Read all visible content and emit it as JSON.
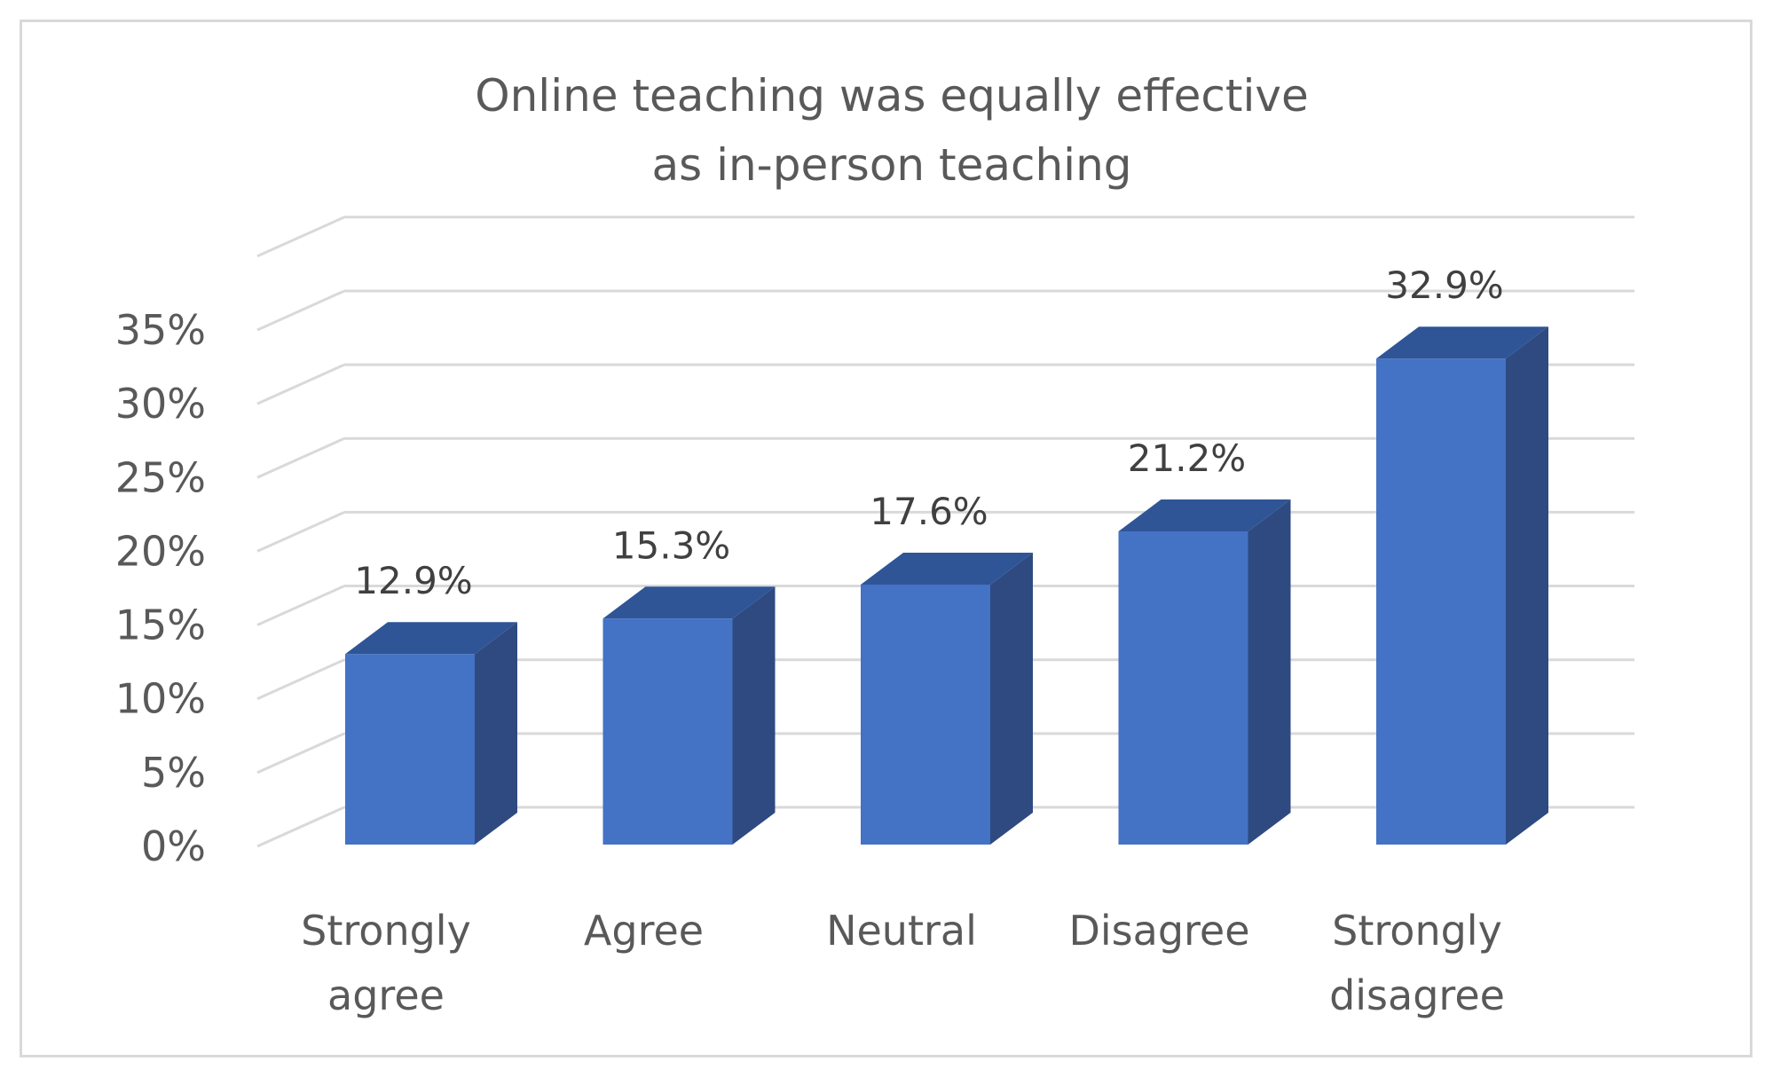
{
  "chart_data": {
    "type": "bar",
    "title_lines": [
      "Online teaching was equally effective",
      "as in-person teaching"
    ],
    "categories": [
      [
        "Strongly",
        "agree"
      ],
      [
        "Agree"
      ],
      [
        "Neutral"
      ],
      [
        "Disagree"
      ],
      [
        "Strongly",
        "disagree"
      ]
    ],
    "values": [
      12.9,
      15.3,
      17.6,
      21.2,
      32.9
    ],
    "value_labels": [
      "12.9%",
      "15.3%",
      "17.6%",
      "21.2%",
      "32.9%"
    ],
    "yticks": [
      0,
      5,
      10,
      15,
      20,
      25,
      30,
      35
    ],
    "ytick_labels": [
      "0%",
      "5%",
      "10%",
      "15%",
      "20%",
      "25%",
      "30%",
      "35%"
    ],
    "ylim": [
      0,
      40
    ],
    "grid": true,
    "style": "3d-column",
    "colors": {
      "front": "#4472c4",
      "side": "#2e4a80",
      "top": "#2f5597",
      "grid": "#d9d9d9",
      "text": "#595959"
    }
  }
}
